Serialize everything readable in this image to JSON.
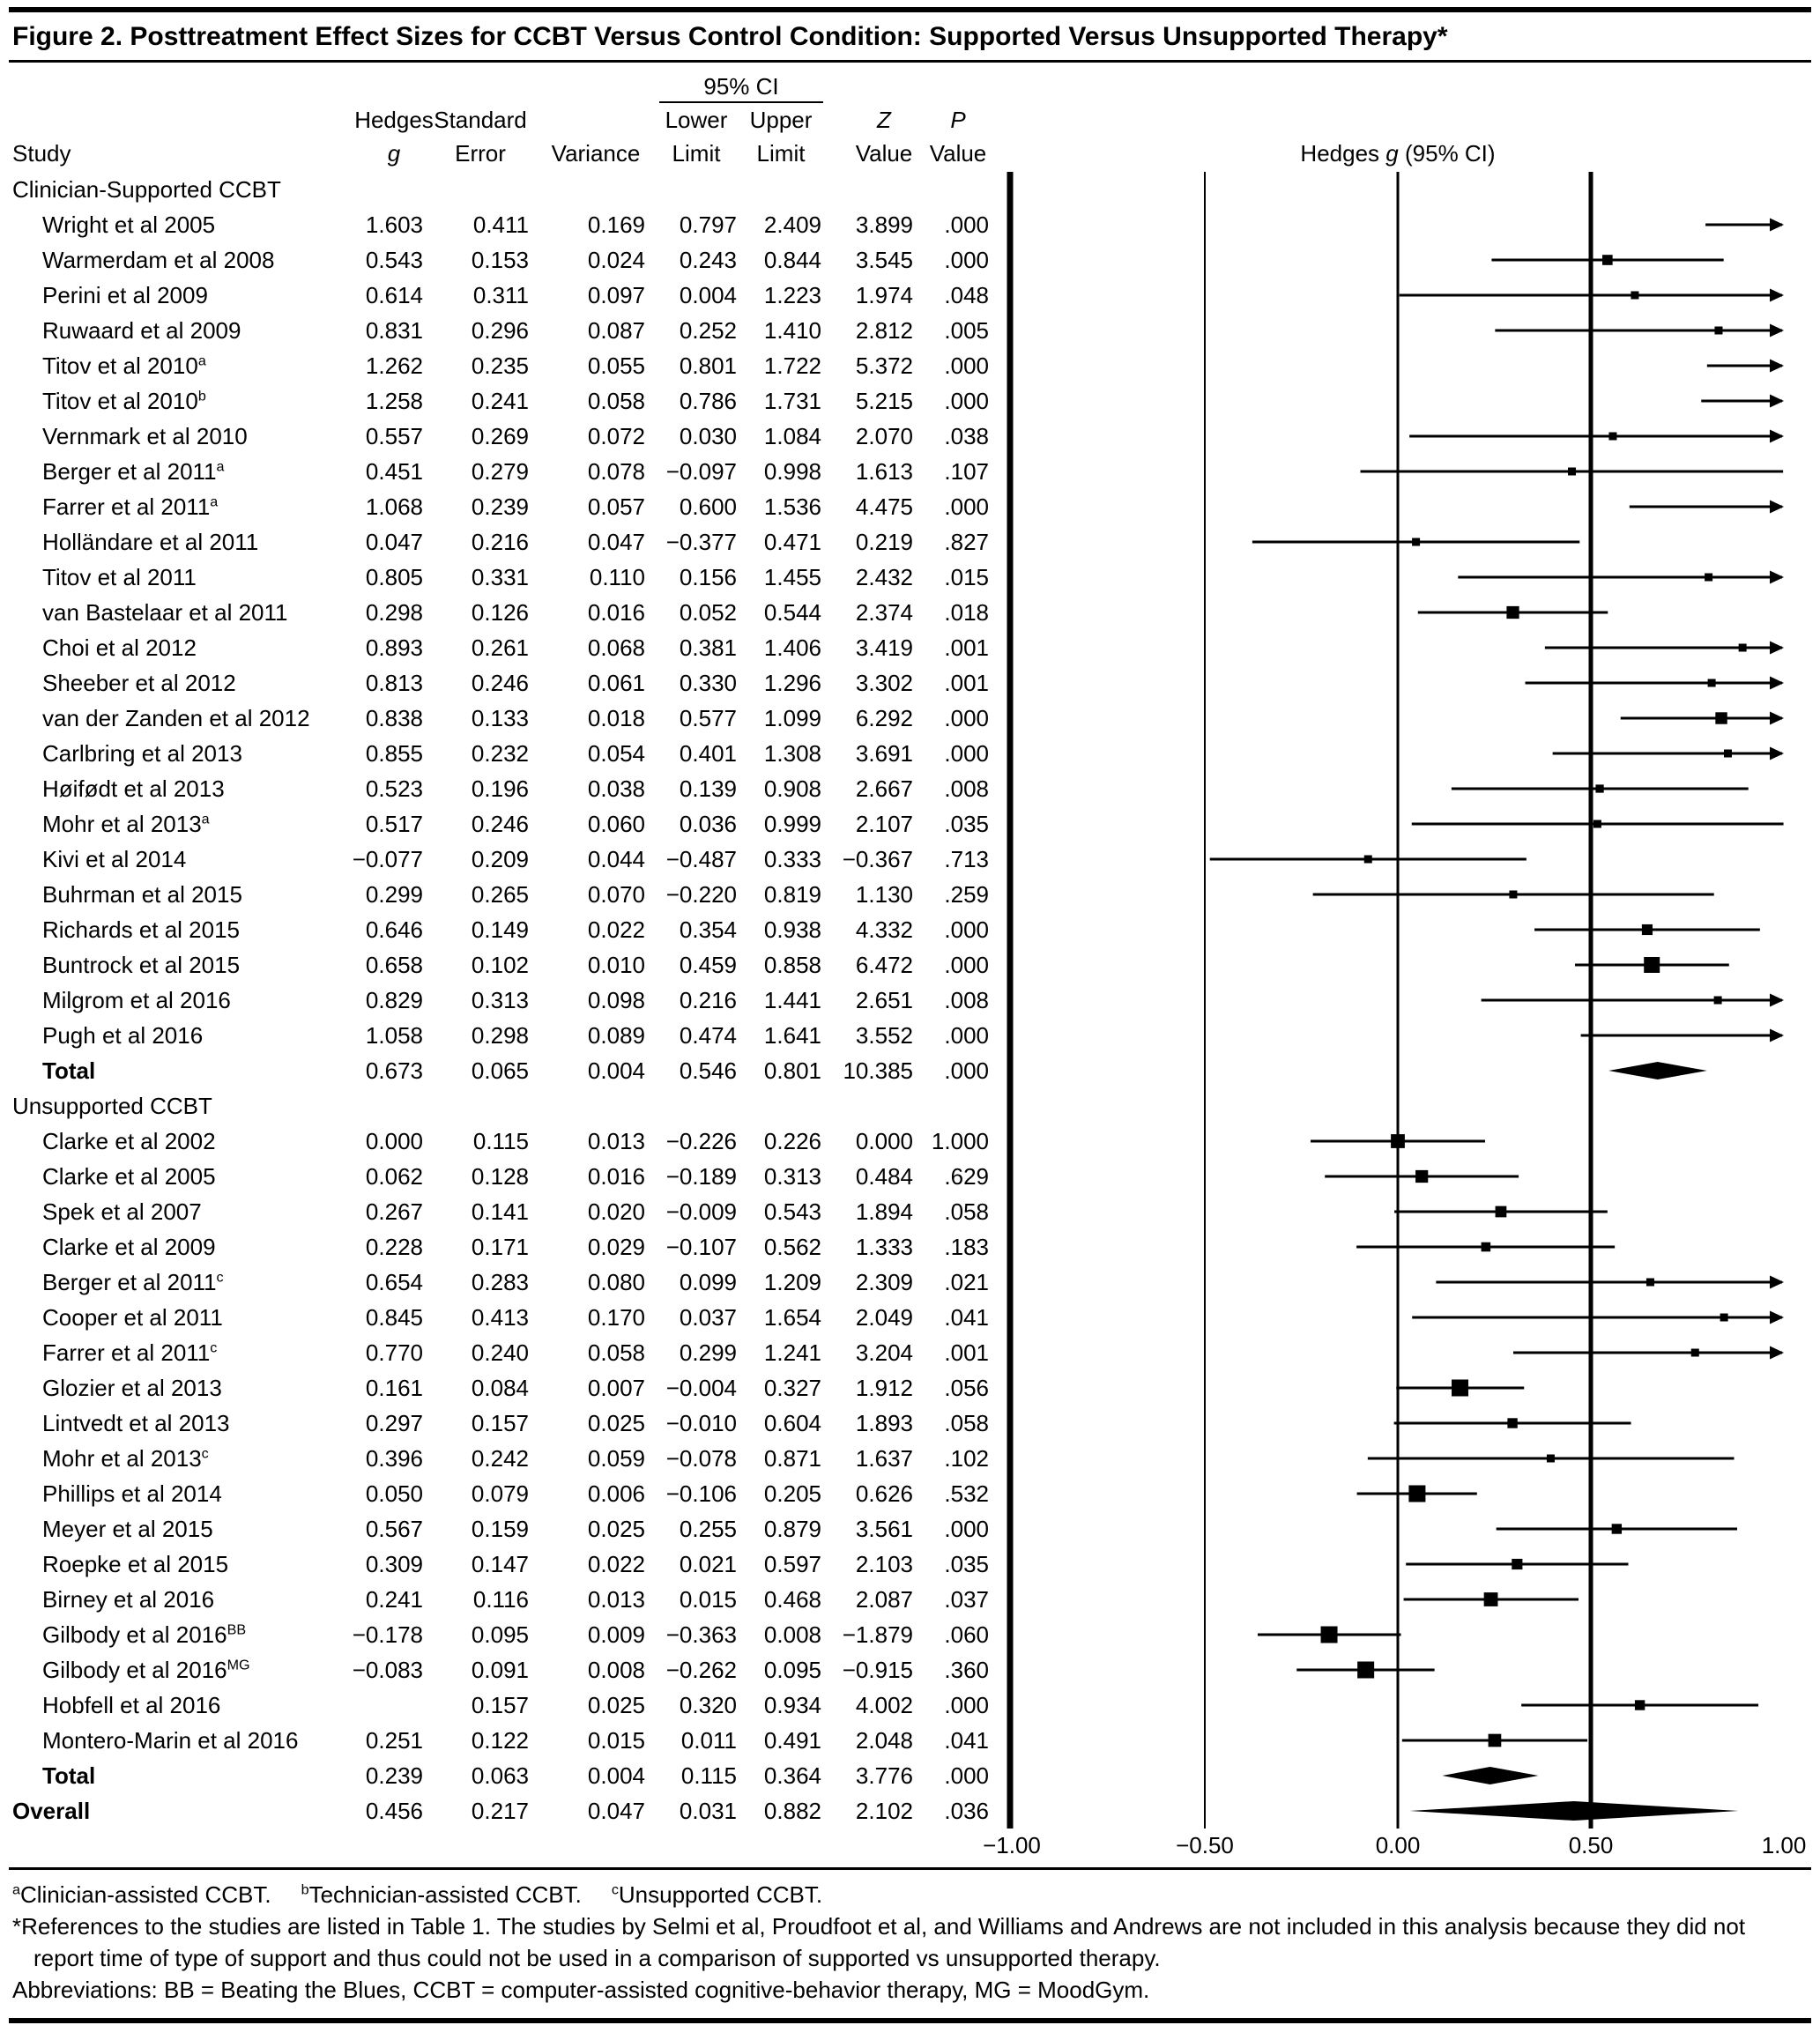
{
  "figure": {
    "title": "Figure 2. Posttreatment Effect Sizes for CCBT Versus Control Condition: Supported Versus Unsupported Therapy*"
  },
  "header": {
    "study": "Study",
    "ci_span": "95% CI",
    "hedges_top": "Hedges",
    "hedges_bottom": "g",
    "se_top": "Standard",
    "se_bottom": "Error",
    "variance": "Variance",
    "lower_top": "Lower",
    "lower_bottom": "Limit",
    "upper_top": "Upper",
    "upper_bottom": "Limit",
    "z_top": "Z",
    "z_bottom": "Value",
    "p_top": "P",
    "p_bottom": "Value",
    "plot_title_pre": "Hedges",
    "plot_title_g": "g",
    "plot_title_post": "(95% CI)"
  },
  "chart_data": {
    "type": "forest",
    "effect_measure": "Hedges g",
    "xlim": [
      -1,
      1
    ],
    "x_ticks": [
      "−1.00",
      "−0.50",
      "0.00",
      "0.50",
      "1.00"
    ],
    "x_tick_values": [
      -1,
      -0.5,
      0,
      0.5,
      1
    ],
    "gridline_values": [
      -0.5,
      0,
      0.5
    ],
    "rows": [
      {
        "type": "section",
        "label": "Clinician-Supported CCBT"
      },
      {
        "type": "study",
        "study": "Wright et al 2005",
        "g": "1.603",
        "se": "0.411",
        "var": "0.169",
        "ll": "0.797",
        "ul": "2.409",
        "z": "3.899",
        "p": ".000"
      },
      {
        "type": "study",
        "study": "Warmerdam et al 2008",
        "g": "0.543",
        "se": "0.153",
        "var": "0.024",
        "ll": "0.243",
        "ul": "0.844",
        "z": "3.545",
        "p": ".000"
      },
      {
        "type": "study",
        "study": "Perini et al 2009",
        "g": "0.614",
        "se": "0.311",
        "var": "0.097",
        "ll": "0.004",
        "ul": "1.223",
        "z": "1.974",
        "p": ".048"
      },
      {
        "type": "study",
        "study": "Ruwaard et al 2009",
        "g": "0.831",
        "se": "0.296",
        "var": "0.087",
        "ll": "0.252",
        "ul": "1.410",
        "z": "2.812",
        "p": ".005"
      },
      {
        "type": "study",
        "study": "Titov et al 2010",
        "sup": "a",
        "g": "1.262",
        "se": "0.235",
        "var": "0.055",
        "ll": "0.801",
        "ul": "1.722",
        "z": "5.372",
        "p": ".000"
      },
      {
        "type": "study",
        "study": "Titov et al 2010",
        "sup": "b",
        "g": "1.258",
        "se": "0.241",
        "var": "0.058",
        "ll": "0.786",
        "ul": "1.731",
        "z": "5.215",
        "p": ".000"
      },
      {
        "type": "study",
        "study": "Vernmark et al 2010",
        "g": "0.557",
        "se": "0.269",
        "var": "0.072",
        "ll": "0.030",
        "ul": "1.084",
        "z": "2.070",
        "p": ".038"
      },
      {
        "type": "study",
        "study": "Berger et al 2011",
        "sup": "a",
        "g": "0.451",
        "se": "0.279",
        "var": "0.078",
        "ll": "−0.097",
        "ul": "0.998",
        "z": "1.613",
        "p": ".107"
      },
      {
        "type": "study",
        "study": "Farrer et al 2011",
        "sup": "a",
        "g": "1.068",
        "se": "0.239",
        "var": "0.057",
        "ll": "0.600",
        "ul": "1.536",
        "z": "4.475",
        "p": ".000"
      },
      {
        "type": "study",
        "study": "Holländare et al 2011",
        "g": "0.047",
        "se": "0.216",
        "var": "0.047",
        "ll": "−0.377",
        "ul": "0.471",
        "z": "0.219",
        "p": ".827"
      },
      {
        "type": "study",
        "study": "Titov et al 2011",
        "g": "0.805",
        "se": "0.331",
        "var": "0.110",
        "ll": "0.156",
        "ul": "1.455",
        "z": "2.432",
        "p": ".015"
      },
      {
        "type": "study",
        "study": "van Bastelaar et al 2011",
        "g": "0.298",
        "se": "0.126",
        "var": "0.016",
        "ll": "0.052",
        "ul": "0.544",
        "z": "2.374",
        "p": ".018"
      },
      {
        "type": "study",
        "study": "Choi et al 2012",
        "g": "0.893",
        "se": "0.261",
        "var": "0.068",
        "ll": "0.381",
        "ul": "1.406",
        "z": "3.419",
        "p": ".001"
      },
      {
        "type": "study",
        "study": "Sheeber et al 2012",
        "g": "0.813",
        "se": "0.246",
        "var": "0.061",
        "ll": "0.330",
        "ul": "1.296",
        "z": "3.302",
        "p": ".001"
      },
      {
        "type": "study",
        "study": "van der Zanden et al 2012",
        "g": "0.838",
        "se": "0.133",
        "var": "0.018",
        "ll": "0.577",
        "ul": "1.099",
        "z": "6.292",
        "p": ".000"
      },
      {
        "type": "study",
        "study": "Carlbring et al 2013",
        "g": "0.855",
        "se": "0.232",
        "var": "0.054",
        "ll": "0.401",
        "ul": "1.308",
        "z": "3.691",
        "p": ".000"
      },
      {
        "type": "study",
        "study": "Høifødt et al 2013",
        "g": "0.523",
        "se": "0.196",
        "var": "0.038",
        "ll": "0.139",
        "ul": "0.908",
        "z": "2.667",
        "p": ".008"
      },
      {
        "type": "study",
        "study": "Mohr et al 2013",
        "sup": "a",
        "g": "0.517",
        "se": "0.246",
        "var": "0.060",
        "ll": "0.036",
        "ul": "0.999",
        "z": "2.107",
        "p": ".035"
      },
      {
        "type": "study",
        "study": "Kivi et al 2014",
        "g": "−0.077",
        "se": "0.209",
        "var": "0.044",
        "ll": "−0.487",
        "ul": "0.333",
        "z": "−0.367",
        "p": ".713"
      },
      {
        "type": "study",
        "study": "Buhrman et al 2015",
        "g": "0.299",
        "se": "0.265",
        "var": "0.070",
        "ll": "−0.220",
        "ul": "0.819",
        "z": "1.130",
        "p": ".259"
      },
      {
        "type": "study",
        "study": "Richards et al 2015",
        "g": "0.646",
        "se": "0.149",
        "var": "0.022",
        "ll": "0.354",
        "ul": "0.938",
        "z": "4.332",
        "p": ".000"
      },
      {
        "type": "study",
        "study": "Buntrock et al 2015",
        "g": "0.658",
        "se": "0.102",
        "var": "0.010",
        "ll": "0.459",
        "ul": "0.858",
        "z": "6.472",
        "p": ".000"
      },
      {
        "type": "study",
        "study": "Milgrom et al 2016",
        "g": "0.829",
        "se": "0.313",
        "var": "0.098",
        "ll": "0.216",
        "ul": "1.441",
        "z": "2.651",
        "p": ".008"
      },
      {
        "type": "study",
        "study": "Pugh et al 2016",
        "g": "1.058",
        "se": "0.298",
        "var": "0.089",
        "ll": "0.474",
        "ul": "1.641",
        "z": "3.552",
        "p": ".000"
      },
      {
        "type": "total",
        "study": "Total",
        "g": "0.673",
        "se": "0.065",
        "var": "0.004",
        "ll": "0.546",
        "ul": "0.801",
        "z": "10.385",
        "p": ".000"
      },
      {
        "type": "section",
        "label": "Unsupported CCBT"
      },
      {
        "type": "study",
        "study": "Clarke et al 2002",
        "g": "0.000",
        "se": "0.115",
        "var": "0.013",
        "ll": "−0.226",
        "ul": "0.226",
        "z": "0.000",
        "p": "1.000"
      },
      {
        "type": "study",
        "study": "Clarke et al 2005",
        "g": "0.062",
        "se": "0.128",
        "var": "0.016",
        "ll": "−0.189",
        "ul": "0.313",
        "z": "0.484",
        "p": ".629"
      },
      {
        "type": "study",
        "study": "Spek et al 2007",
        "g": "0.267",
        "se": "0.141",
        "var": "0.020",
        "ll": "−0.009",
        "ul": "0.543",
        "z": "1.894",
        "p": ".058"
      },
      {
        "type": "study",
        "study": "Clarke et al 2009",
        "g": "0.228",
        "se": "0.171",
        "var": "0.029",
        "ll": "−0.107",
        "ul": "0.562",
        "z": "1.333",
        "p": ".183"
      },
      {
        "type": "study",
        "study": "Berger et al 2011",
        "sup": "c",
        "g": "0.654",
        "se": "0.283",
        "var": "0.080",
        "ll": "0.099",
        "ul": "1.209",
        "z": "2.309",
        "p": ".021"
      },
      {
        "type": "study",
        "study": "Cooper et al 2011",
        "g": "0.845",
        "se": "0.413",
        "var": "0.170",
        "ll": "0.037",
        "ul": "1.654",
        "z": "2.049",
        "p": ".041"
      },
      {
        "type": "study",
        "study": "Farrer et al 2011",
        "sup": "c",
        "g": "0.770",
        "se": "0.240",
        "var": "0.058",
        "ll": "0.299",
        "ul": "1.241",
        "z": "3.204",
        "p": ".001"
      },
      {
        "type": "study",
        "study": "Glozier et al 2013",
        "g": "0.161",
        "se": "0.084",
        "var": "0.007",
        "ll": "−0.004",
        "ul": "0.327",
        "z": "1.912",
        "p": ".056"
      },
      {
        "type": "study",
        "study": "Lintvedt et al 2013",
        "g": "0.297",
        "se": "0.157",
        "var": "0.025",
        "ll": "−0.010",
        "ul": "0.604",
        "z": "1.893",
        "p": ".058"
      },
      {
        "type": "study",
        "study": "Mohr et al 2013",
        "sup": "c",
        "g": "0.396",
        "se": "0.242",
        "var": "0.059",
        "ll": "−0.078",
        "ul": "0.871",
        "z": "1.637",
        "p": ".102"
      },
      {
        "type": "study",
        "study": "Phillips et al 2014",
        "g": "0.050",
        "se": "0.079",
        "var": "0.006",
        "ll": "−0.106",
        "ul": "0.205",
        "z": "0.626",
        "p": ".532"
      },
      {
        "type": "study",
        "study": "Meyer et al 2015",
        "g": "0.567",
        "se": "0.159",
        "var": "0.025",
        "ll": "0.255",
        "ul": "0.879",
        "z": "3.561",
        "p": ".000"
      },
      {
        "type": "study",
        "study": "Roepke et al 2015",
        "g": "0.309",
        "se": "0.147",
        "var": "0.022",
        "ll": "0.021",
        "ul": "0.597",
        "z": "2.103",
        "p": ".035"
      },
      {
        "type": "study",
        "study": "Birney et al 2016",
        "g": "0.241",
        "se": "0.116",
        "var": "0.013",
        "ll": "0.015",
        "ul": "0.468",
        "z": "2.087",
        "p": ".037"
      },
      {
        "type": "study",
        "study": "Gilbody et al 2016",
        "sup": "BB",
        "g": "−0.178",
        "se": "0.095",
        "var": "0.009",
        "ll": "−0.363",
        "ul": "0.008",
        "z": "−1.879",
        "p": ".060"
      },
      {
        "type": "study",
        "study": "Gilbody et al 2016",
        "sup": "MG",
        "g": "−0.083",
        "se": "0.091",
        "var": "0.008",
        "ll": "−0.262",
        "ul": "0.095",
        "z": "−0.915",
        "p": ".360"
      },
      {
        "type": "study",
        "study": "Hobfell et al 2016",
        "g": "",
        "se": "0.157",
        "var": "0.025",
        "ll": "0.320",
        "ul": "0.934",
        "z": "4.002",
        "p": ".000"
      },
      {
        "type": "study",
        "study": "Montero-Marin et al 2016",
        "g": "0.251",
        "se": "0.122",
        "var": "0.015",
        "ll": "0.011",
        "ul": "0.491",
        "z": "2.048",
        "p": ".041"
      },
      {
        "type": "total",
        "study": "Total",
        "g": "0.239",
        "se": "0.063",
        "var": "0.004",
        "ll": "0.115",
        "ul": "0.364",
        "z": "3.776",
        "p": ".000"
      },
      {
        "type": "overall",
        "study": "Overall",
        "g": "0.456",
        "se": "0.217",
        "var": "0.047",
        "ll": "0.031",
        "ul": "0.882",
        "z": "2.102",
        "p": ".036"
      }
    ]
  },
  "footnotes": {
    "sup_items": [
      {
        "sup": "a",
        "text": "Clinician-assisted CCBT."
      },
      {
        "sup": "b",
        "text": "Technician-assisted CCBT."
      },
      {
        "sup": "c",
        "text": "Unsupported CCBT."
      }
    ],
    "note": "*References to the studies are listed in Table 1. The studies by Selmi et al, Proudfoot et al, and Williams and Andrews are not included in this analysis because they did not report time of type of support and thus could not be used in a comparison of supported vs unsupported therapy.",
    "abbreviations": "Abbreviations: BB = Beating the Blues, CCBT = computer-assisted cognitive-behavior therapy, MG = MoodGym."
  }
}
